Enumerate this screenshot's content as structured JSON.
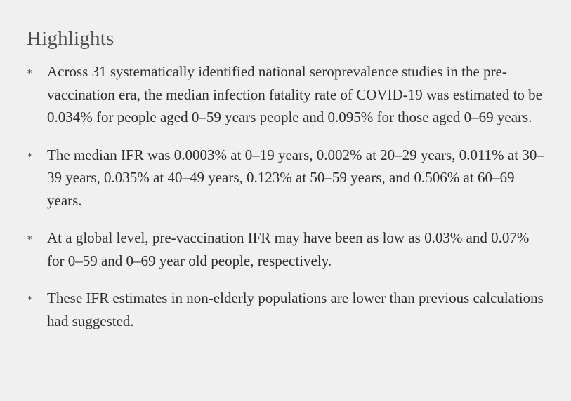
{
  "section": {
    "title": "Highlights",
    "bullet_symbol": "∗",
    "items": [
      {
        "text": "Across 31 systematically identified national seroprevalence studies in the pre-vaccination era, the median infection fatality rate of COVID-19 was estimated to be 0.034% for people aged 0–59 years people and 0.095% for those aged 0–69 years."
      },
      {
        "text": "The median IFR was 0.0003% at 0–19 years, 0.002% at 20–29 years, 0.011% at 30–39 years, 0.035% at 40–49 years, 0.123% at 50–59 years, and 0.506% at 60–69 years."
      },
      {
        "text": "At a global level, pre-vaccination IFR may have been as low as 0.03% and 0.07% for 0–59 and 0–69 year old people, respectively."
      },
      {
        "text": "These IFR estimates in non-elderly populations are lower than previous calculations had suggested."
      }
    ]
  }
}
